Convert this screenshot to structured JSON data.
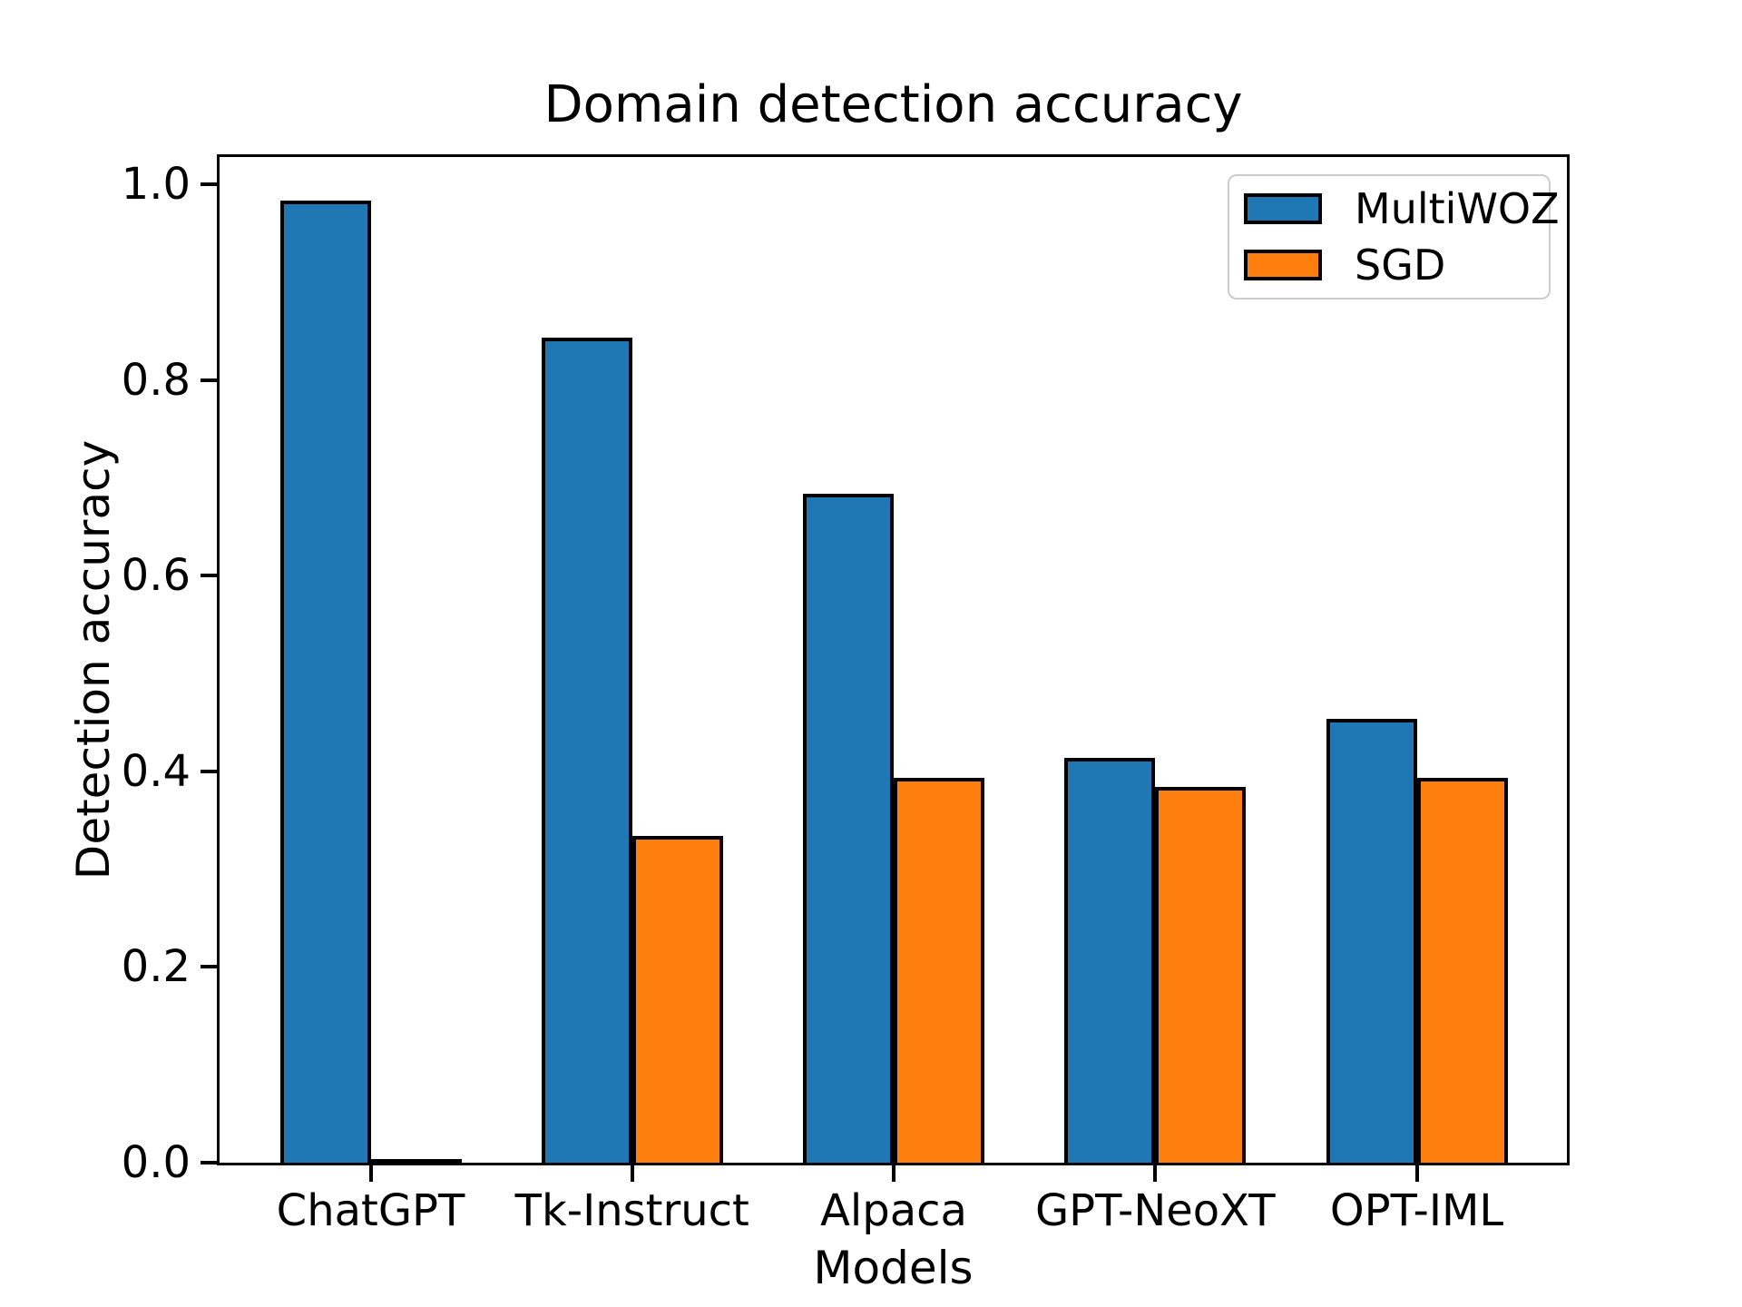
{
  "chart_data": {
    "type": "bar",
    "title": "Domain detection accuracy",
    "xlabel": "Models",
    "ylabel": "Detection accuracy",
    "categories": [
      "ChatGPT",
      "Tk-Instruct",
      "Alpaca",
      "GPT-NeoXT",
      "OPT-IML"
    ],
    "series": [
      {
        "name": "MultiWOZ",
        "color": "#1f77b4",
        "values": [
          0.98,
          0.84,
          0.68,
          0.41,
          0.45
        ]
      },
      {
        "name": "SGD",
        "color": "#ff7f0e",
        "values": [
          0.0,
          0.33,
          0.39,
          0.38,
          0.39
        ]
      }
    ],
    "bar_edge_color": "#000000",
    "axis_color": "#000000",
    "legend_edge_color": "#cccccc",
    "ylim": [
      0.0,
      1.028
    ],
    "yticks": [
      {
        "value": 0.0,
        "label": "0.0"
      },
      {
        "value": 0.2,
        "label": "0.2"
      },
      {
        "value": 0.4,
        "label": "0.4"
      },
      {
        "value": 0.6,
        "label": "0.6"
      },
      {
        "value": 0.8,
        "label": "0.8"
      },
      {
        "value": 1.0,
        "label": "1.0"
      }
    ],
    "grid": false,
    "legend_position": "upper right"
  }
}
